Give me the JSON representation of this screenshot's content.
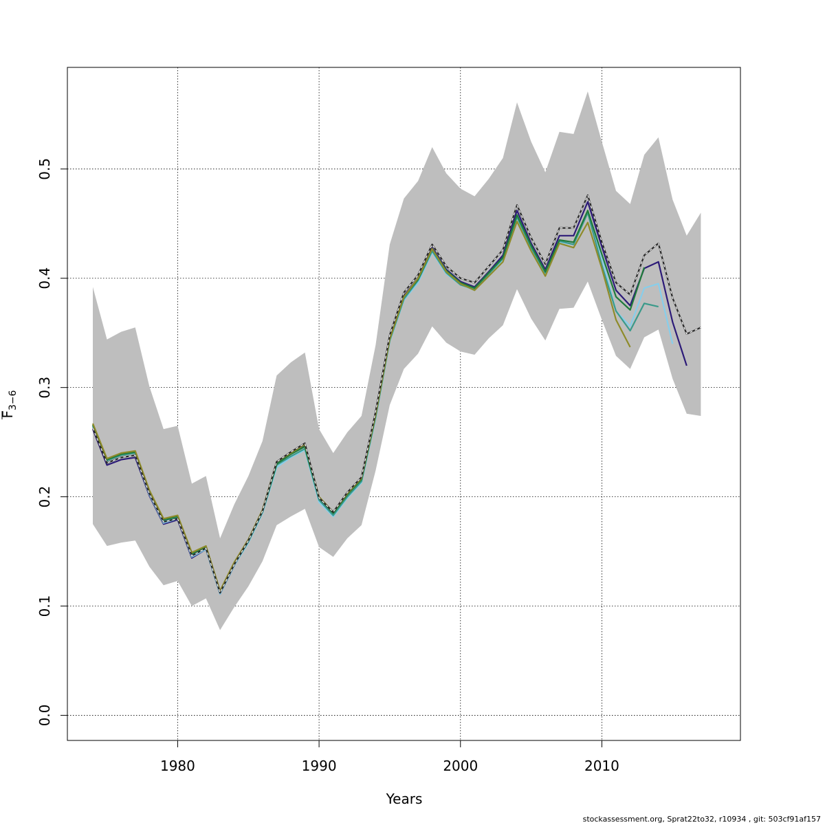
{
  "footer": "stockassessment.org, Sprat22to32, r10934 , git: 503cf91af157",
  "chart_data": {
    "type": "line",
    "xlabel": "Years",
    "ylabel": "F",
    "ylabel_subscript": "3−6",
    "xlim": [
      1972.2,
      2019.8
    ],
    "ylim": [
      -0.023,
      0.593
    ],
    "x_ticks": [
      1980,
      1990,
      2000,
      2010
    ],
    "y_ticks": [
      0.0,
      0.1,
      0.2,
      0.3,
      0.4,
      0.5
    ],
    "y_tick_labels": [
      "0.0",
      "0.1",
      "0.2",
      "0.3",
      "0.4",
      "0.5"
    ],
    "grid": true,
    "band": {
      "color": "#bebebe",
      "x": [
        1974,
        1975,
        1976,
        1977,
        1978,
        1979,
        1980,
        1981,
        1982,
        1983,
        1984,
        1985,
        1986,
        1987,
        1988,
        1989,
        1990,
        1991,
        1992,
        1993,
        1994,
        1995,
        1996,
        1997,
        1998,
        1999,
        2000,
        2001,
        2002,
        2003,
        2004,
        2005,
        2006,
        2007,
        2008,
        2009,
        2010,
        2011,
        2012,
        2013,
        2014,
        2015,
        2016,
        2017
      ],
      "upper": [
        0.392,
        0.344,
        0.351,
        0.355,
        0.301,
        0.262,
        0.265,
        0.212,
        0.219,
        0.162,
        0.193,
        0.219,
        0.251,
        0.311,
        0.323,
        0.332,
        0.262,
        0.24,
        0.259,
        0.274,
        0.339,
        0.431,
        0.473,
        0.489,
        0.52,
        0.496,
        0.482,
        0.475,
        0.491,
        0.51,
        0.561,
        0.525,
        0.497,
        0.534,
        0.532,
        0.571,
        0.525,
        0.48,
        0.468,
        0.513,
        0.529,
        0.472,
        0.439,
        0.46
      ],
      "lower": [
        0.175,
        0.155,
        0.158,
        0.16,
        0.136,
        0.119,
        0.123,
        0.1,
        0.107,
        0.078,
        0.099,
        0.118,
        0.141,
        0.174,
        0.182,
        0.189,
        0.154,
        0.145,
        0.162,
        0.174,
        0.224,
        0.284,
        0.317,
        0.331,
        0.356,
        0.341,
        0.333,
        0.33,
        0.345,
        0.357,
        0.39,
        0.363,
        0.343,
        0.372,
        0.373,
        0.397,
        0.362,
        0.329,
        0.317,
        0.346,
        0.353,
        0.308,
        0.276,
        0.274
      ]
    },
    "series": [
      {
        "color": "#2c1a78",
        "x": [
          1974,
          1975,
          1976,
          1977,
          1978,
          1979,
          1980,
          1981,
          1982,
          1983,
          1984,
          1985,
          1986,
          1987,
          1988,
          1989,
          1990,
          1991,
          1992,
          1993,
          1994,
          1995,
          1996,
          1997,
          1998,
          1999,
          2000,
          2001,
          2002,
          2003,
          2004,
          2005,
          2006,
          2007,
          2008,
          2009,
          2010,
          2011,
          2012,
          2013,
          2014,
          2015,
          2016
        ],
        "values": [
          0.262,
          0.229,
          0.234,
          0.236,
          0.201,
          0.175,
          0.179,
          0.144,
          0.152,
          0.111,
          0.137,
          0.159,
          0.186,
          0.23,
          0.239,
          0.247,
          0.197,
          0.184,
          0.202,
          0.216,
          0.276,
          0.346,
          0.384,
          0.4,
          0.428,
          0.408,
          0.397,
          0.392,
          0.406,
          0.421,
          0.462,
          0.432,
          0.408,
          0.439,
          0.439,
          0.47,
          0.429,
          0.389,
          0.375,
          0.409,
          0.415,
          0.36,
          0.32
        ]
      },
      {
        "color": "#87ceeb",
        "x": [
          1974,
          1975,
          1976,
          1977,
          1978,
          1979,
          1980,
          1981,
          1982,
          1983,
          1984,
          1985,
          1986,
          1987,
          1988,
          1989,
          1990,
          1991,
          1992,
          1993,
          1994,
          1995,
          1996,
          1997,
          1998,
          1999,
          2000,
          2001,
          2002,
          2003,
          2004,
          2005,
          2006,
          2007,
          2008,
          2009,
          2010,
          2011,
          2012,
          2013,
          2014,
          2015
        ],
        "values": [
          0.264,
          0.231,
          0.236,
          0.238,
          0.202,
          0.176,
          0.18,
          0.145,
          0.152,
          0.111,
          0.137,
          0.158,
          0.185,
          0.227,
          0.236,
          0.243,
          0.195,
          0.182,
          0.199,
          0.213,
          0.272,
          0.342,
          0.38,
          0.396,
          0.424,
          0.404,
          0.394,
          0.389,
          0.403,
          0.417,
          0.456,
          0.427,
          0.404,
          0.433,
          0.431,
          0.461,
          0.419,
          0.37,
          0.356,
          0.391,
          0.395,
          0.34
        ]
      },
      {
        "color": "#3a9a8a",
        "x": [
          1974,
          1975,
          1976,
          1977,
          1978,
          1979,
          1980,
          1981,
          1982,
          1983,
          1984,
          1985,
          1986,
          1987,
          1988,
          1989,
          1990,
          1991,
          1992,
          1993,
          1994,
          1995,
          1996,
          1997,
          1998,
          1999,
          2000,
          2001,
          2002,
          2003,
          2004,
          2005,
          2006,
          2007,
          2008,
          2009,
          2010,
          2011,
          2012,
          2013,
          2014
        ],
        "values": [
          0.265,
          0.233,
          0.238,
          0.24,
          0.204,
          0.178,
          0.181,
          0.147,
          0.153,
          0.112,
          0.138,
          0.159,
          0.186,
          0.229,
          0.237,
          0.244,
          0.197,
          0.183,
          0.2,
          0.214,
          0.273,
          0.343,
          0.381,
          0.398,
          0.425,
          0.405,
          0.394,
          0.39,
          0.404,
          0.418,
          0.456,
          0.428,
          0.405,
          0.434,
          0.431,
          0.46,
          0.412,
          0.37,
          0.352,
          0.377,
          0.374
        ]
      },
      {
        "color": "#1f7a3a",
        "x": [
          1974,
          1975,
          1976,
          1977,
          1978,
          1979,
          1980,
          1981,
          1982,
          1983,
          1984,
          1985,
          1986,
          1987,
          1988,
          1989,
          1990,
          1991,
          1992,
          1993,
          1994,
          1995,
          1996,
          1997,
          1998,
          1999,
          2000,
          2001,
          2002,
          2003,
          2004,
          2005,
          2006,
          2007,
          2008,
          2009,
          2010,
          2011,
          2012,
          2013
        ],
        "values": [
          0.266,
          0.234,
          0.239,
          0.241,
          0.205,
          0.179,
          0.182,
          0.148,
          0.154,
          0.113,
          0.139,
          0.16,
          0.187,
          0.23,
          0.239,
          0.246,
          0.199,
          0.185,
          0.202,
          0.216,
          0.275,
          0.345,
          0.383,
          0.399,
          0.427,
          0.407,
          0.396,
          0.391,
          0.405,
          0.419,
          0.458,
          0.43,
          0.406,
          0.435,
          0.433,
          0.462,
          0.422,
          0.383,
          0.371,
          0.41
        ]
      },
      {
        "color": "#8e8b2a",
        "x": [
          1974,
          1975,
          1976,
          1977,
          1978,
          1979,
          1980,
          1981,
          1982,
          1983,
          1984,
          1985,
          1986,
          1987,
          1988,
          1989,
          1990,
          1991,
          1992,
          1993,
          1994,
          1995,
          1996,
          1997,
          1998,
          1999,
          2000,
          2001,
          2002,
          2003,
          2004,
          2005,
          2006,
          2007,
          2008,
          2009,
          2010,
          2011,
          2012
        ],
        "values": [
          0.267,
          0.235,
          0.24,
          0.242,
          0.206,
          0.18,
          0.183,
          0.149,
          0.155,
          0.114,
          0.14,
          0.161,
          0.188,
          0.232,
          0.24,
          0.248,
          0.2,
          0.186,
          0.203,
          0.217,
          0.275,
          0.344,
          0.383,
          0.4,
          0.427,
          0.406,
          0.395,
          0.389,
          0.402,
          0.415,
          0.452,
          0.425,
          0.402,
          0.432,
          0.428,
          0.451,
          0.409,
          0.362,
          0.337
        ]
      },
      {
        "color": "#2a2a2a",
        "dashed_overlay": true,
        "x": [
          1974,
          1975,
          1976,
          1977,
          1978,
          1979,
          1980,
          1981,
          1982,
          1983,
          1984,
          1985,
          1986,
          1987,
          1988,
          1989,
          1990,
          1991,
          1992,
          1993,
          1994,
          1995,
          1996,
          1997,
          1998,
          1999,
          2000,
          2001,
          2002,
          2003,
          2004,
          2005,
          2006,
          2007,
          2008,
          2009,
          2010,
          2011,
          2012,
          2013,
          2014,
          2015,
          2016,
          2017
        ],
        "values": [
          0.263,
          0.231,
          0.236,
          0.238,
          0.203,
          0.177,
          0.18,
          0.146,
          0.153,
          0.112,
          0.138,
          0.16,
          0.187,
          0.232,
          0.241,
          0.249,
          0.199,
          0.186,
          0.204,
          0.218,
          0.278,
          0.348,
          0.387,
          0.403,
          0.431,
          0.411,
          0.4,
          0.396,
          0.411,
          0.426,
          0.467,
          0.437,
          0.413,
          0.446,
          0.446,
          0.476,
          0.433,
          0.396,
          0.385,
          0.421,
          0.432,
          0.382,
          0.349,
          0.355
        ]
      }
    ]
  }
}
